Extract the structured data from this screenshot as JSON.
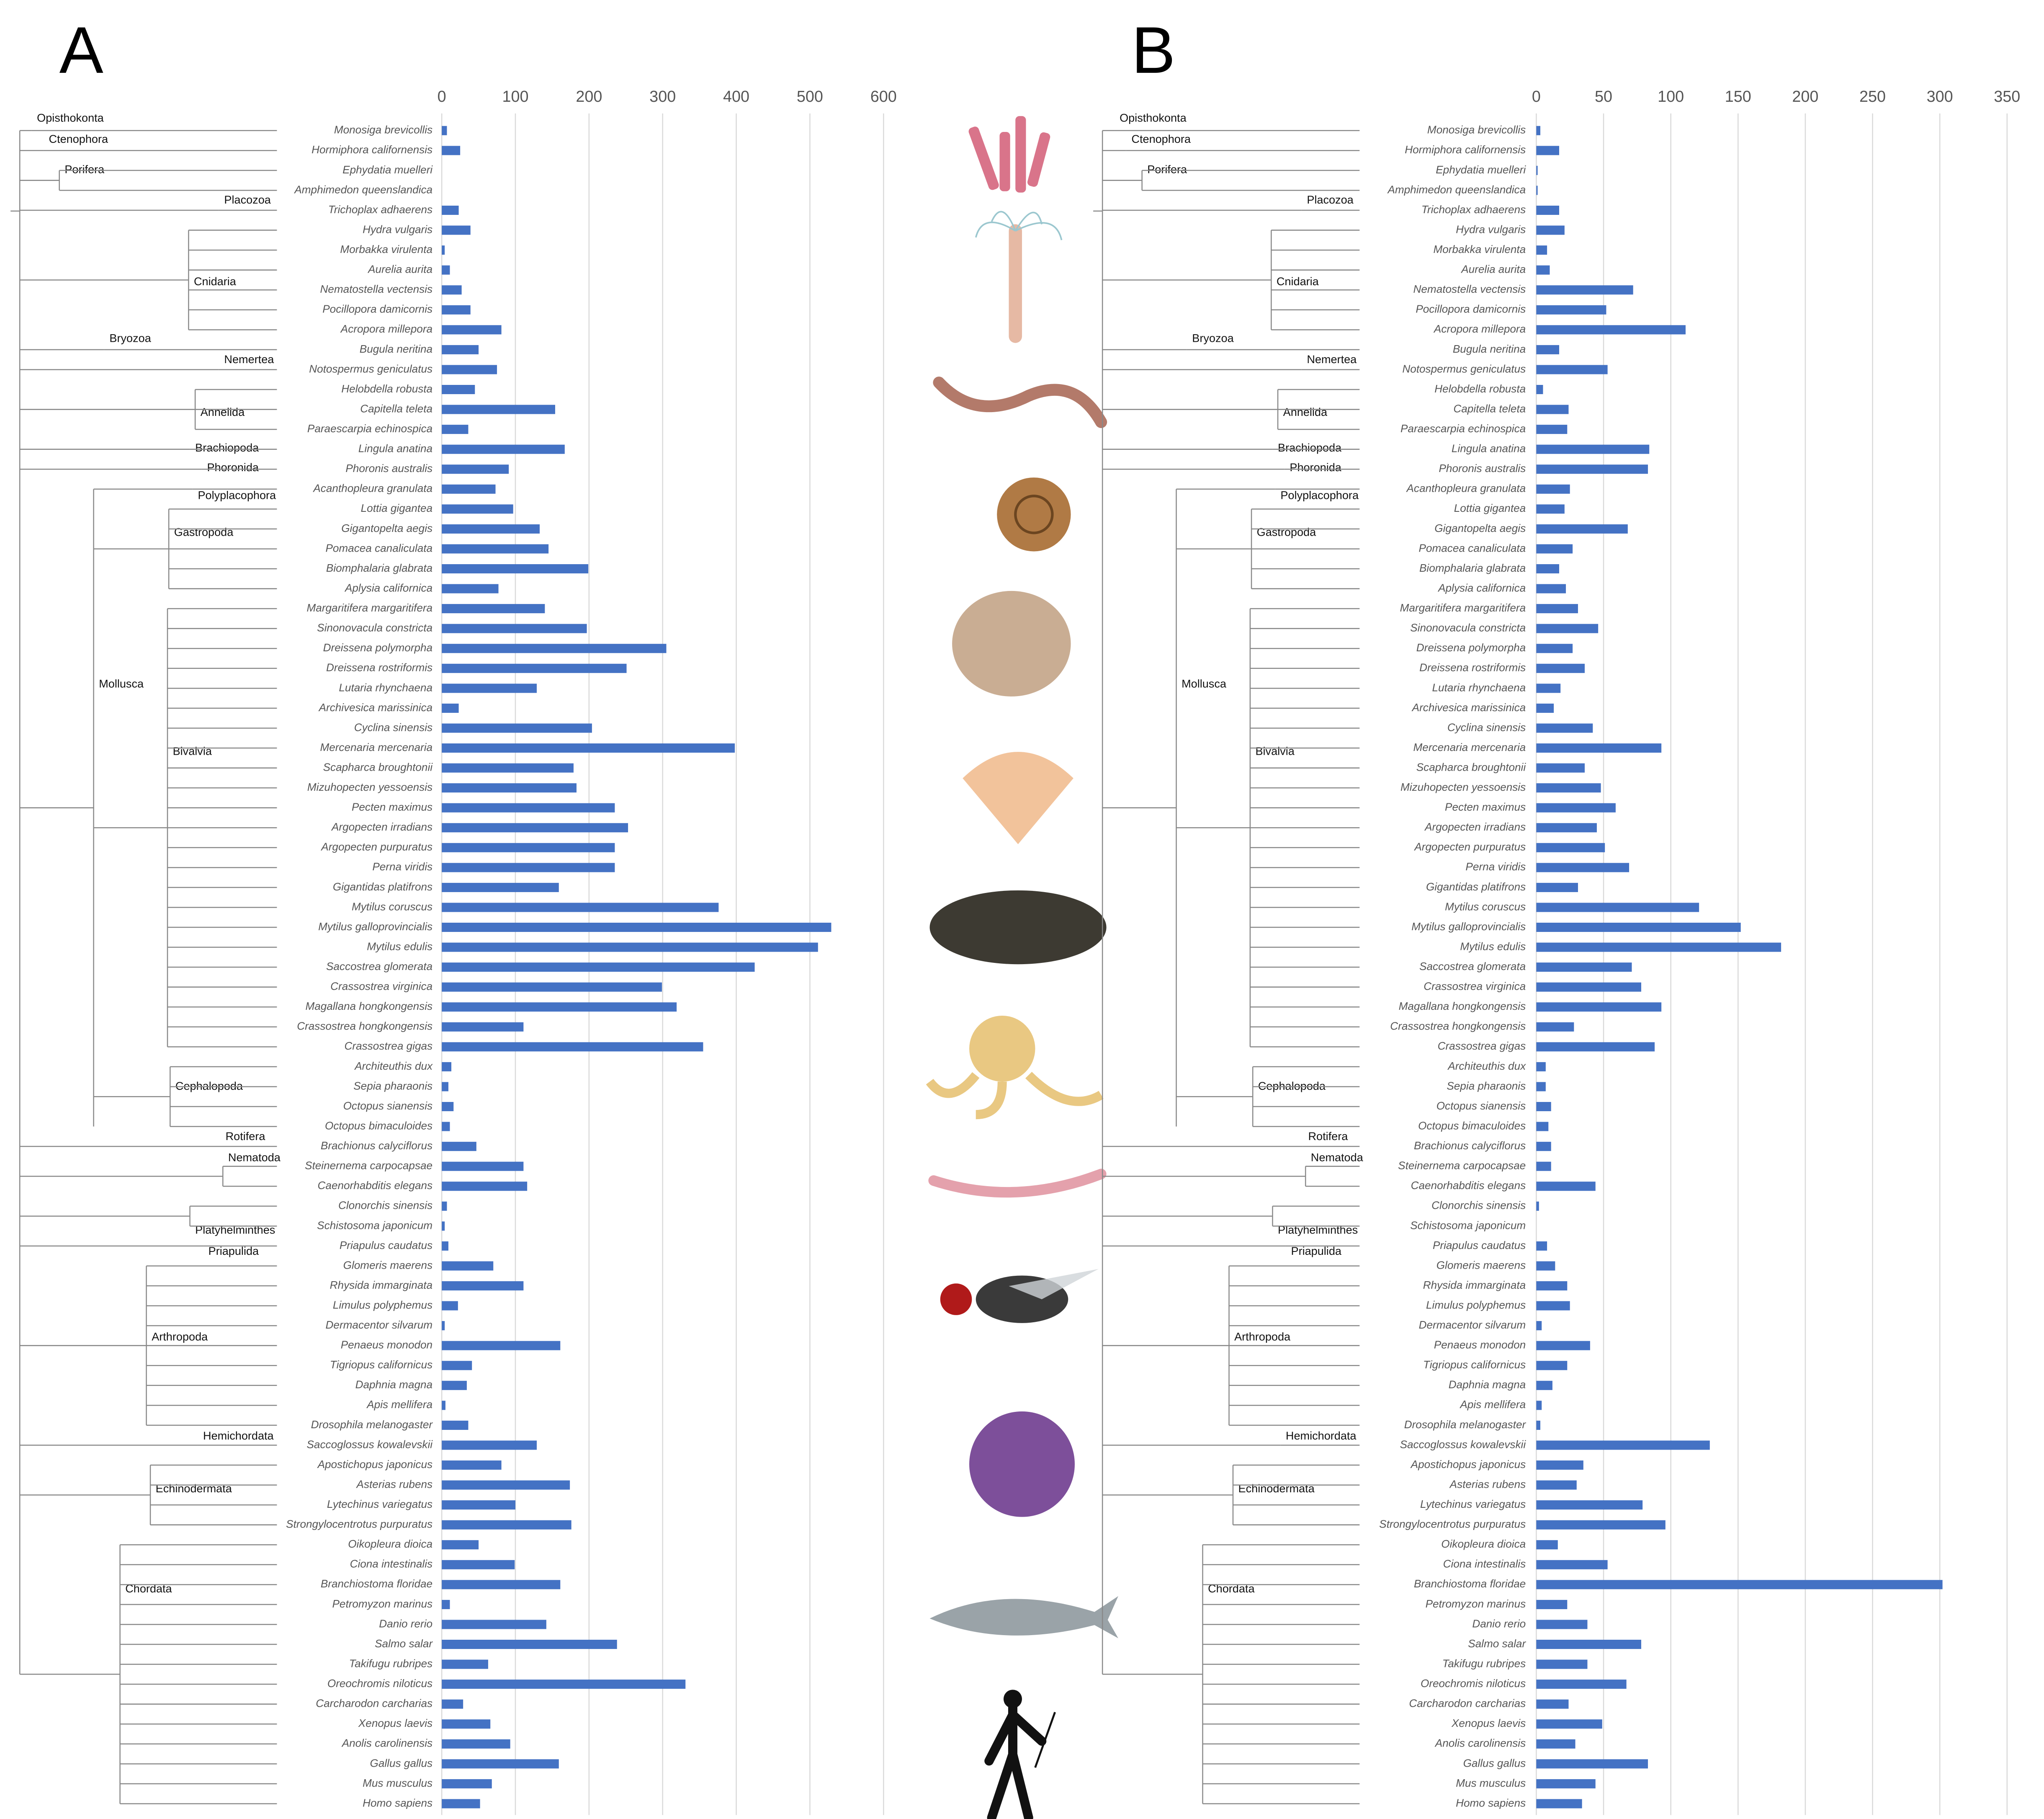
{
  "chart_data": [
    {
      "type": "bar",
      "title": "A",
      "color": "#4472c4",
      "xlim": [
        0,
        600
      ],
      "xticks": [
        0,
        100,
        200,
        300,
        400,
        500,
        600
      ],
      "grid": true,
      "clades": [
        "Opisthokonta",
        "Ctenophora",
        "Porifera",
        "Placozoa",
        "Cnidaria",
        "Bryozoa",
        "Nemertea",
        "Annelida",
        "Brachiopoda",
        "Phoronida",
        "Polyplacophora",
        "Gastropoda",
        "Mollusca",
        "Bivalvia",
        "Cephalopoda",
        "Rotifera",
        "Nematoda",
        "Platyhelminthes",
        "Priapulida",
        "Arthropoda",
        "Hemichordata",
        "Echinodermata",
        "Chordata"
      ],
      "categories": [
        "Monosiga brevicollis",
        "Hormiphora californensis",
        "Ephydatia muelleri",
        "Amphimedon queenslandica",
        "Trichoplax adhaerens",
        "Hydra vulgaris",
        "Morbakka virulenta",
        "Aurelia aurita",
        "Nematostella vectensis",
        "Pocillopora damicornis",
        "Acropora millepora",
        "Bugula neritina",
        "Notospermus geniculatus",
        "Helobdella robusta",
        "Capitella teleta",
        "Paraescarpia echinospica",
        "Lingula anatina",
        "Phoronis australis",
        "Acanthopleura granulata",
        "Lottia gigantea",
        "Gigantopelta aegis",
        "Pomacea canaliculata",
        "Biomphalaria glabrata",
        "Aplysia californica",
        "Margaritifera margaritifera",
        "Sinonovacula constricta",
        "Dreissena polymorpha",
        "Dreissena rostriformis",
        "Lutaria rhynchaena",
        "Archivesica marissinica",
        "Cyclina sinensis",
        "Mercenaria mercenaria",
        "Scapharca broughtonii",
        "Mizuhopecten yessoensis",
        "Pecten maximus",
        "Argopecten irradians",
        "Argopecten purpuratus",
        "Perna viridis",
        "Gigantidas platifrons",
        "Mytilus coruscus",
        "Mytilus galloprovincialis",
        "Mytilus edulis",
        "Saccostrea glomerata",
        "Crassostrea virginica",
        "Magallana hongkongensis",
        "Crassostrea hongkongensis",
        "Crassostrea gigas",
        "Architeuthis dux",
        "Sepia pharaonis",
        "Octopus sianensis",
        "Octopus bimaculoides",
        "Brachionus calyciflorus",
        "Steinernema carpocapsae",
        "Caenorhabditis elegans",
        "Clonorchis sinensis",
        "Schistosoma japonicum",
        "Priapulus caudatus",
        "Glomeris maerens",
        "Rhysida immarginata",
        "Limulus polyphemus",
        "Dermacentor silvarum",
        "Penaeus monodon",
        "Tigriopus californicus",
        "Daphnia magna",
        "Apis mellifera",
        "Drosophila melanogaster",
        "Saccoglossus kowalevskii",
        "Apostichopus japonicus",
        "Asterias rubens",
        "Lytechinus variegatus",
        "Strongylocentrotus purpuratus",
        "Oikopleura dioica",
        "Ciona intestinalis",
        "Branchiostoma floridae",
        "Petromyzon marinus",
        "Danio rerio",
        "Salmo salar",
        "Takifugu rubripes",
        "Oreochromis niloticus",
        "Carcharodon carcharias",
        "Xenopus laevis",
        "Anolis carolinensis",
        "Gallus gallus",
        "Mus musculus",
        "Homo sapiens"
      ],
      "values": [
        7,
        25,
        0,
        0,
        23,
        39,
        4,
        11,
        27,
        39,
        81,
        50,
        75,
        45,
        154,
        36,
        167,
        91,
        73,
        97,
        133,
        145,
        199,
        77,
        140,
        197,
        305,
        251,
        129,
        23,
        204,
        398,
        179,
        183,
        235,
        253,
        235,
        235,
        159,
        376,
        529,
        511,
        425,
        299,
        319,
        111,
        355,
        13,
        9,
        16,
        11,
        47,
        111,
        116,
        7,
        4,
        9,
        70,
        111,
        22,
        4,
        161,
        41,
        34,
        5,
        36,
        129,
        81,
        174,
        100,
        176,
        50,
        99,
        161,
        11,
        142,
        238,
        63,
        331,
        29,
        66,
        93,
        159,
        68,
        52
      ]
    },
    {
      "type": "bar",
      "title": "B",
      "color": "#4472c4",
      "xlim": [
        0,
        350
      ],
      "xticks": [
        0,
        50,
        100,
        150,
        200,
        250,
        300,
        350
      ],
      "grid": true,
      "clades": [
        "Opisthokonta",
        "Ctenophora",
        "Porifera",
        "Placozoa",
        "Cnidaria",
        "Bryozoa",
        "Nemertea",
        "Annelida",
        "Brachiopoda",
        "Phoronida",
        "Polyplacophora",
        "Gastropoda",
        "Mollusca",
        "Bivalvia",
        "Cephalopoda",
        "Rotifera",
        "Nematoda",
        "Platyhelminthes",
        "Priapulida",
        "Arthropoda",
        "Hemichordata",
        "Echinodermata",
        "Chordata"
      ],
      "categories": [
        "Monosiga brevicollis",
        "Hormiphora californensis",
        "Ephydatia muelleri",
        "Amphimedon queenslandica",
        "Trichoplax adhaerens",
        "Hydra vulgaris",
        "Morbakka virulenta",
        "Aurelia aurita",
        "Nematostella vectensis",
        "Pocillopora damicornis",
        "Acropora millepora",
        "Bugula neritina",
        "Notospermus geniculatus",
        "Helobdella robusta",
        "Capitella teleta",
        "Paraescarpia echinospica",
        "Lingula anatina",
        "Phoronis australis",
        "Acanthopleura granulata",
        "Lottia gigantea",
        "Gigantopelta aegis",
        "Pomacea canaliculata",
        "Biomphalaria glabrata",
        "Aplysia californica",
        "Margaritifera margaritifera",
        "Sinonovacula constricta",
        "Dreissena polymorpha",
        "Dreissena rostriformis",
        "Lutaria rhynchaena",
        "Archivesica marissinica",
        "Cyclina sinensis",
        "Mercenaria mercenaria",
        "Scapharca broughtonii",
        "Mizuhopecten yessoensis",
        "Pecten maximus",
        "Argopecten irradians",
        "Argopecten purpuratus",
        "Perna viridis",
        "Gigantidas platifrons",
        "Mytilus coruscus",
        "Mytilus galloprovincialis",
        "Mytilus edulis",
        "Saccostrea glomerata",
        "Crassostrea virginica",
        "Magallana hongkongensis",
        "Crassostrea hongkongensis",
        "Crassostrea gigas",
        "Architeuthis dux",
        "Sepia pharaonis",
        "Octopus sianensis",
        "Octopus bimaculoides",
        "Brachionus calyciflorus",
        "Steinernema carpocapsae",
        "Caenorhabditis elegans",
        "Clonorchis sinensis",
        "Schistosoma japonicum",
        "Priapulus caudatus",
        "Glomeris maerens",
        "Rhysida immarginata",
        "Limulus polyphemus",
        "Dermacentor silvarum",
        "Penaeus monodon",
        "Tigriopus californicus",
        "Daphnia magna",
        "Apis mellifera",
        "Drosophila melanogaster",
        "Saccoglossus kowalevskii",
        "Apostichopus japonicus",
        "Asterias rubens",
        "Lytechinus variegatus",
        "Strongylocentrotus purpuratus",
        "Oikopleura dioica",
        "Ciona intestinalis",
        "Branchiostoma floridae",
        "Petromyzon marinus",
        "Danio rerio",
        "Salmo salar",
        "Takifugu rubripes",
        "Oreochromis niloticus",
        "Carcharodon carcharias",
        "Xenopus laevis",
        "Anolis carolinensis",
        "Gallus gallus",
        "Mus musculus",
        "Homo sapiens"
      ],
      "values": [
        3,
        17,
        1,
        1,
        17,
        21,
        8,
        10,
        72,
        52,
        111,
        17,
        53,
        5,
        24,
        23,
        84,
        83,
        25,
        21,
        68,
        27,
        17,
        22,
        31,
        46,
        27,
        36,
        18,
        13,
        42,
        93,
        36,
        48,
        59,
        45,
        51,
        69,
        31,
        121,
        152,
        182,
        71,
        78,
        93,
        28,
        88,
        7,
        7,
        11,
        9,
        11,
        11,
        44,
        2,
        0,
        8,
        14,
        23,
        25,
        4,
        40,
        23,
        12,
        4,
        3,
        129,
        35,
        30,
        79,
        96,
        16,
        53,
        302,
        23,
        38,
        78,
        38,
        67,
        24,
        49,
        29,
        83,
        44,
        34
      ]
    }
  ]
}
